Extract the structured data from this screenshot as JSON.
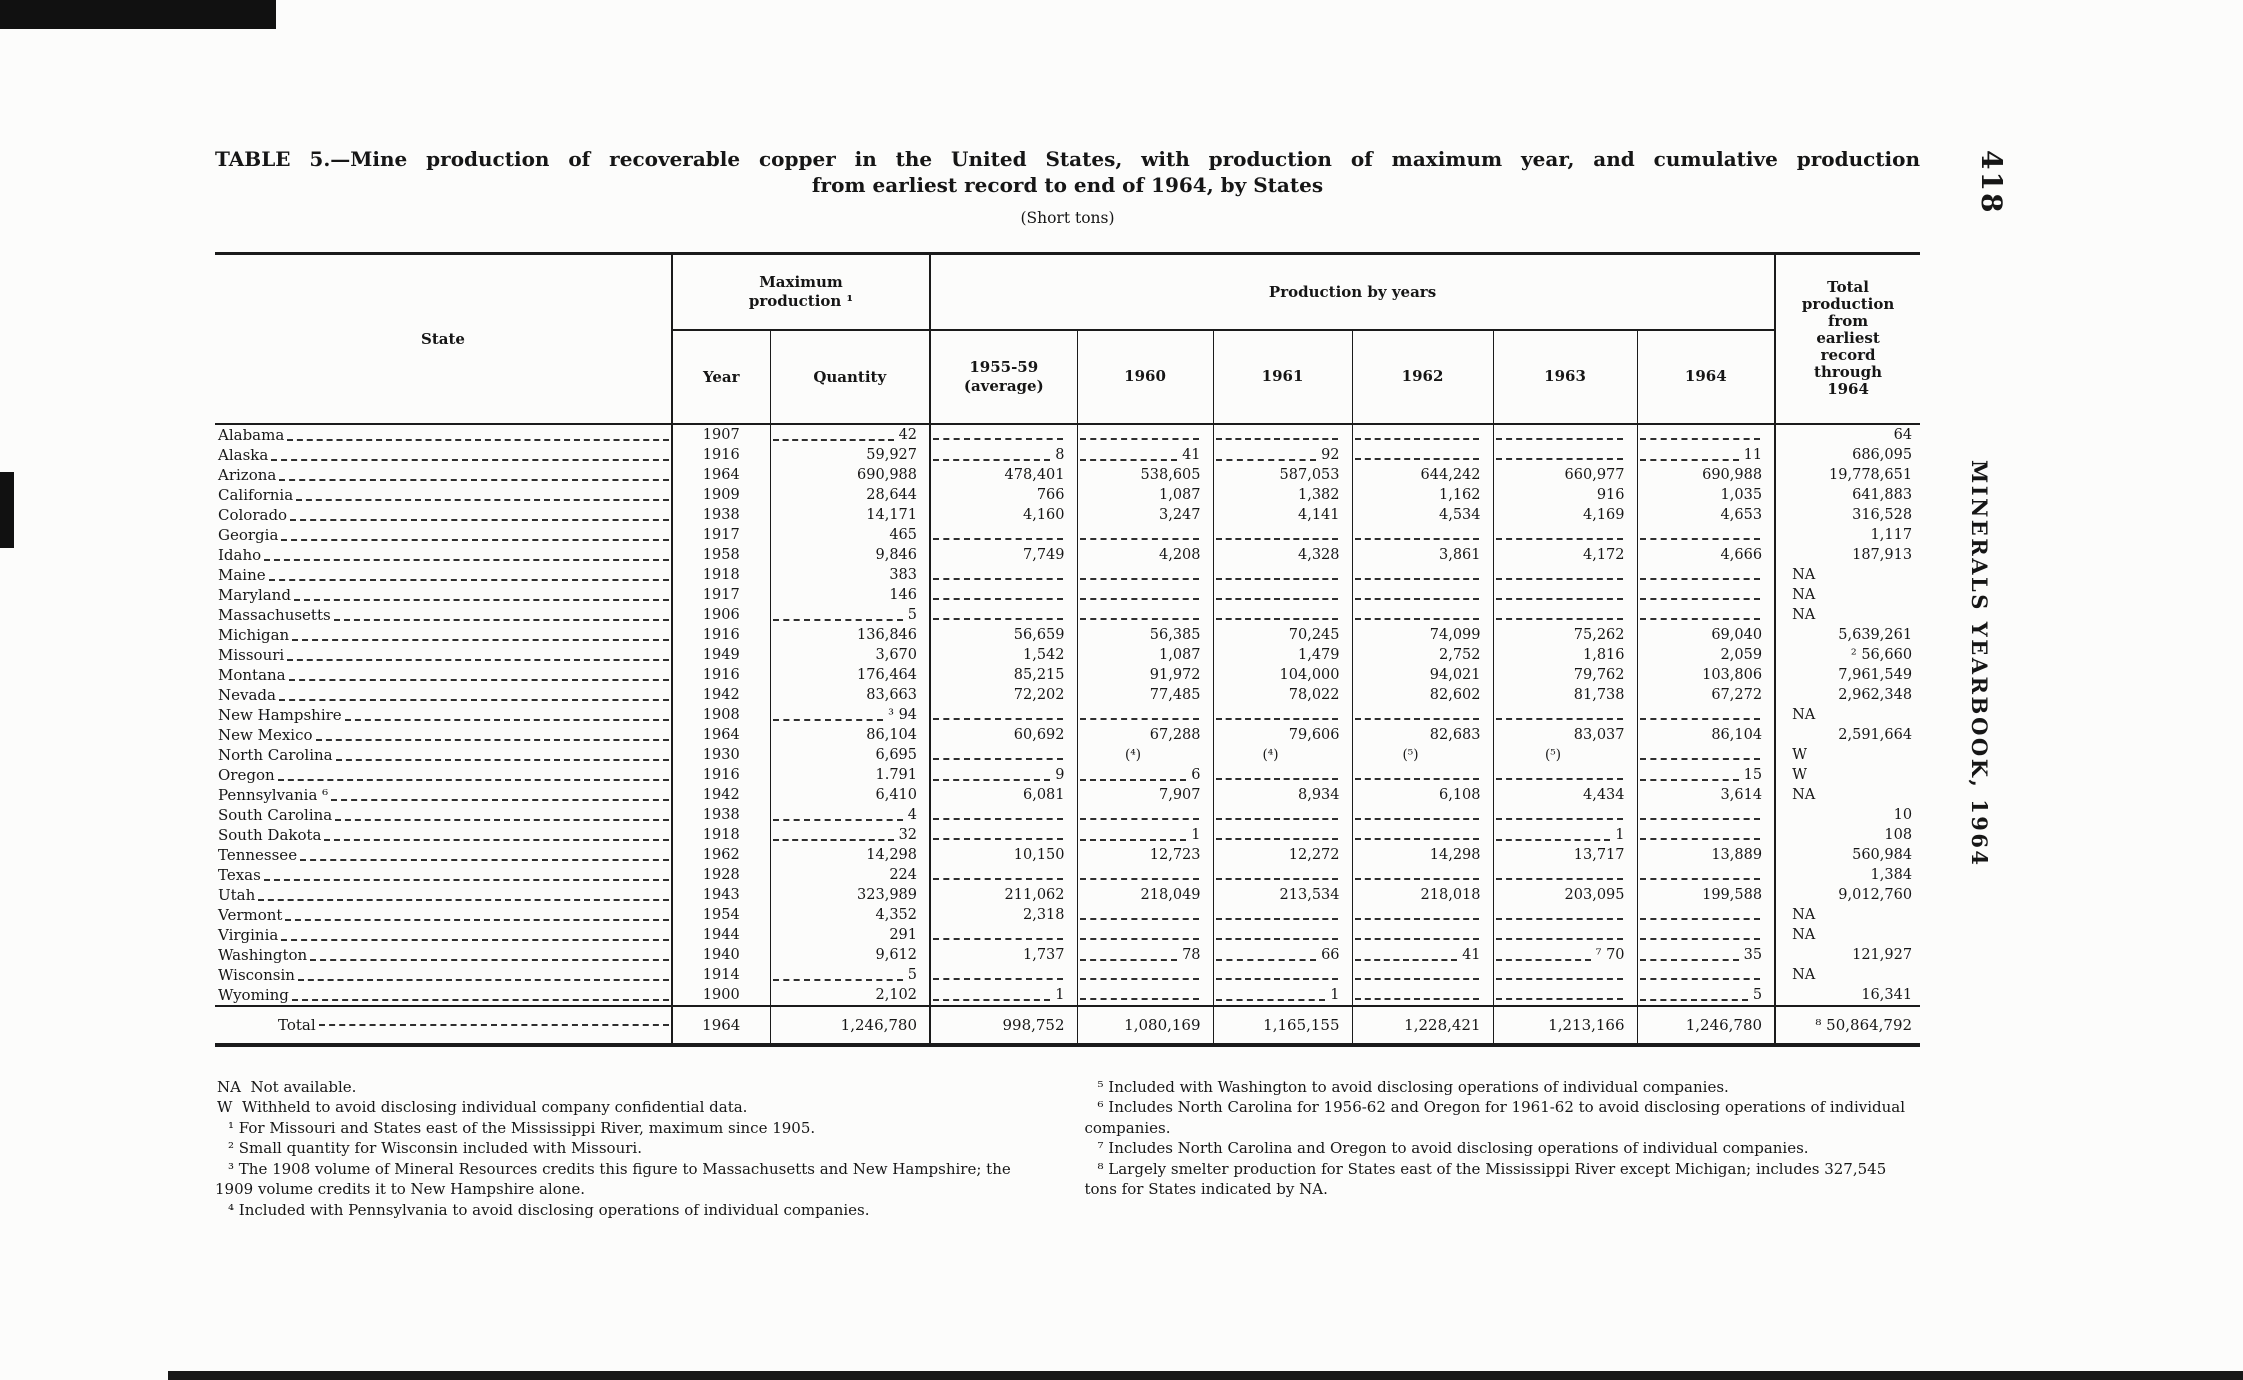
{
  "page": {
    "number": "418",
    "running_title": "MINERALS YEARBOOK, 1964"
  },
  "table": {
    "title_line1": "TABLE 5.—Mine production of recoverable copper in the United States, with production of maximum year, and cumulative production",
    "title_line2": "from earliest record to end of 1964, by States",
    "subtitle": "(Short tons)",
    "headers": {
      "state": "State",
      "max_production": "Maximum\nproduction ¹",
      "production_by_years": "Production by years",
      "total": "Total\nproduction\nfrom\nearliest\nrecord\nthrough\n1964",
      "year": "Year",
      "quantity": "Quantity",
      "year_cols": [
        "1955-59\n(average)",
        "1960",
        "1961",
        "1962",
        "1963",
        "1964"
      ]
    },
    "rows": [
      {
        "state": "Alabama",
        "year": "1907",
        "quantity": "42",
        "values": [
          "",
          "",
          "",
          "",
          "",
          ""
        ],
        "total": "64"
      },
      {
        "state": "Alaska",
        "year": "1916",
        "quantity": "59,927",
        "values": [
          "8",
          "41",
          "92",
          "",
          "",
          "11"
        ],
        "total": "686,095"
      },
      {
        "state": "Arizona",
        "year": "1964",
        "quantity": "690,988",
        "values": [
          "478,401",
          "538,605",
          "587,053",
          "644,242",
          "660,977",
          "690,988"
        ],
        "total": "19,778,651"
      },
      {
        "state": "California",
        "year": "1909",
        "quantity": "28,644",
        "values": [
          "766",
          "1,087",
          "1,382",
          "1,162",
          "916",
          "1,035"
        ],
        "total": "641,883"
      },
      {
        "state": "Colorado",
        "year": "1938",
        "quantity": "14,171",
        "values": [
          "4,160",
          "3,247",
          "4,141",
          "4,534",
          "4,169",
          "4,653"
        ],
        "total": "316,528"
      },
      {
        "state": "Georgia",
        "year": "1917",
        "quantity": "465",
        "values": [
          "",
          "",
          "",
          "",
          "",
          ""
        ],
        "total": "1,117"
      },
      {
        "state": "Idaho",
        "year": "1958",
        "quantity": "9,846",
        "values": [
          "7,749",
          "4,208",
          "4,328",
          "3,861",
          "4,172",
          "4,666"
        ],
        "total": "187,913"
      },
      {
        "state": "Maine",
        "year": "1918",
        "quantity": "383",
        "values": [
          "",
          "",
          "",
          "",
          "",
          ""
        ],
        "total": "NA"
      },
      {
        "state": "Maryland",
        "year": "1917",
        "quantity": "146",
        "values": [
          "",
          "",
          "",
          "",
          "",
          ""
        ],
        "total": "NA"
      },
      {
        "state": "Massachusetts",
        "year": "1906",
        "quantity": "5",
        "values": [
          "",
          "",
          "",
          "",
          "",
          ""
        ],
        "total": "NA"
      },
      {
        "state": "Michigan",
        "year": "1916",
        "quantity": "136,846",
        "values": [
          "56,659",
          "56,385",
          "70,245",
          "74,099",
          "75,262",
          "69,040"
        ],
        "total": "5,639,261"
      },
      {
        "state": "Missouri",
        "year": "1949",
        "quantity": "3,670",
        "values": [
          "1,542",
          "1,087",
          "1,479",
          "2,752",
          "1,816",
          "2,059"
        ],
        "total": "² 56,660"
      },
      {
        "state": "Montana",
        "year": "1916",
        "quantity": "176,464",
        "values": [
          "85,215",
          "91,972",
          "104,000",
          "94,021",
          "79,762",
          "103,806"
        ],
        "total": "7,961,549"
      },
      {
        "state": "Nevada",
        "year": "1942",
        "quantity": "83,663",
        "values": [
          "72,202",
          "77,485",
          "78,022",
          "82,602",
          "81,738",
          "67,272"
        ],
        "total": "2,962,348"
      },
      {
        "state": "New Hampshire",
        "year": "1908",
        "quantity": "³ 94",
        "values": [
          "",
          "",
          "",
          "",
          "",
          ""
        ],
        "total": "NA"
      },
      {
        "state": "New Mexico",
        "year": "1964",
        "quantity": "86,104",
        "values": [
          "60,692",
          "67,288",
          "79,606",
          "82,683",
          "83,037",
          "86,104"
        ],
        "total": "2,591,664"
      },
      {
        "state": "North Carolina",
        "year": "1930",
        "quantity": "6,695",
        "values": [
          "",
          "(⁴)",
          "(⁴)",
          "(⁵)",
          "(⁵)",
          ""
        ],
        "total": "W"
      },
      {
        "state": "Oregon",
        "year": "1916",
        "quantity": "1.791",
        "values": [
          "9",
          "6",
          "",
          "",
          "",
          "15"
        ],
        "total": "W"
      },
      {
        "state": "Pennsylvania ⁶",
        "year": "1942",
        "quantity": "6,410",
        "values": [
          "6,081",
          "7,907",
          "8,934",
          "6,108",
          "4,434",
          "3,614"
        ],
        "total": "NA"
      },
      {
        "state": "South Carolina",
        "year": "1938",
        "quantity": "4",
        "values": [
          "",
          "",
          "",
          "",
          "",
          ""
        ],
        "total": "10"
      },
      {
        "state": "South Dakota",
        "year": "1918",
        "quantity": "32",
        "values": [
          "",
          "1",
          "",
          "",
          "1",
          ""
        ],
        "total": "108"
      },
      {
        "state": "Tennessee",
        "year": "1962",
        "quantity": "14,298",
        "values": [
          "10,150",
          "12,723",
          "12,272",
          "14,298",
          "13,717",
          "13,889"
        ],
        "total": "560,984"
      },
      {
        "state": "Texas",
        "year": "1928",
        "quantity": "224",
        "values": [
          "",
          "",
          "",
          "",
          "",
          ""
        ],
        "total": "1,384"
      },
      {
        "state": "Utah",
        "year": "1943",
        "quantity": "323,989",
        "values": [
          "211,062",
          "218,049",
          "213,534",
          "218,018",
          "203,095",
          "199,588"
        ],
        "total": "9,012,760"
      },
      {
        "state": "Vermont",
        "year": "1954",
        "quantity": "4,352",
        "values": [
          "2,318",
          "",
          "",
          "",
          "",
          ""
        ],
        "total": "NA"
      },
      {
        "state": "Virginia",
        "year": "1944",
        "quantity": "291",
        "values": [
          "",
          "",
          "",
          "",
          "",
          ""
        ],
        "total": "NA"
      },
      {
        "state": "Washington",
        "year": "1940",
        "quantity": "9,612",
        "values": [
          "1,737",
          "78",
          "66",
          "41",
          "⁷ 70",
          "35"
        ],
        "total": "121,927"
      },
      {
        "state": "Wisconsin",
        "year": "1914",
        "quantity": "5",
        "values": [
          "",
          "",
          "",
          "",
          "",
          ""
        ],
        "total": "NA"
      },
      {
        "state": "Wyoming",
        "year": "1900",
        "quantity": "2,102",
        "values": [
          "1",
          "",
          "1",
          "",
          "",
          "5"
        ],
        "total": "16,341"
      }
    ],
    "total_row": {
      "state": "Total",
      "year": "1964",
      "quantity": "1,246,780",
      "values": [
        "998,752",
        "1,080,169",
        "1,165,155",
        "1,228,421",
        "1,213,166",
        "1,246,780"
      ],
      "total": "⁸ 50,864,792"
    }
  },
  "footnotes": {
    "left": [
      "NA  Not available.",
      "W  Withheld to avoid disclosing individual company confidential data.",
      "¹ For Missouri and States east of the Mississippi River, maximum since 1905.",
      "² Small quantity for Wisconsin included with Missouri.",
      "³ The 1908 volume of Mineral Resources credits this figure to Massachusetts and New Hampshire; the 1909 volume credits it to New Hampshire alone.",
      "⁴ Included with Pennsylvania to avoid disclosing operations of individual companies."
    ],
    "right": [
      "⁵ Included with Washington to avoid disclosing operations of individual companies.",
      "⁶ Includes North Carolina for 1956-62 and Oregon for 1961-62 to avoid disclosing operations of individual companies.",
      "⁷ Includes North Carolina and Oregon to avoid disclosing operations of individual companies.",
      "⁸ Largely smelter production for States east of the Mississippi River except Michigan; includes 327,545 tons for States indicated by NA."
    ]
  }
}
